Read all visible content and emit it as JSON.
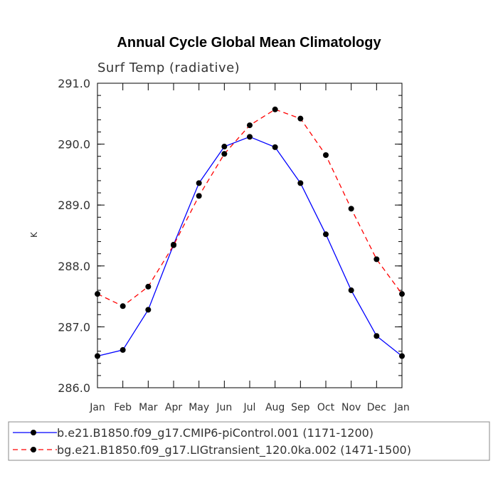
{
  "chart_data": {
    "type": "line",
    "title": "Annual Cycle Global Mean Climatology",
    "subtitle": "Surf Temp (radiative)",
    "xlabel": "",
    "ylabel": "K",
    "categories": [
      "Jan",
      "Feb",
      "Mar",
      "Apr",
      "May",
      "Jun",
      "Jul",
      "Aug",
      "Sep",
      "Oct",
      "Nov",
      "Dec",
      "Jan"
    ],
    "ylim": [
      286.0,
      291.0
    ],
    "yticks": [
      "286.0",
      "287.0",
      "288.0",
      "289.0",
      "290.0",
      "291.0"
    ],
    "series": [
      {
        "name": "b.e21.B1850.f09_g17.CMIP6-piControl.001 (1171-1200)",
        "color": "#0000ff",
        "dash": "solid",
        "values": [
          286.52,
          286.62,
          287.28,
          288.35,
          289.36,
          289.96,
          290.12,
          289.95,
          289.36,
          288.52,
          287.6,
          286.85,
          286.52
        ]
      },
      {
        "name": "bg.e21.B1850.f09_g17.LIGtransient_120.0ka.002 (1471-1500)",
        "color": "#ff0000",
        "dash": "dashed",
        "values": [
          287.54,
          287.34,
          287.66,
          288.34,
          289.15,
          289.84,
          290.31,
          290.57,
          290.42,
          289.82,
          288.94,
          288.11,
          287.54
        ]
      }
    ],
    "legend_position": "bottom"
  }
}
